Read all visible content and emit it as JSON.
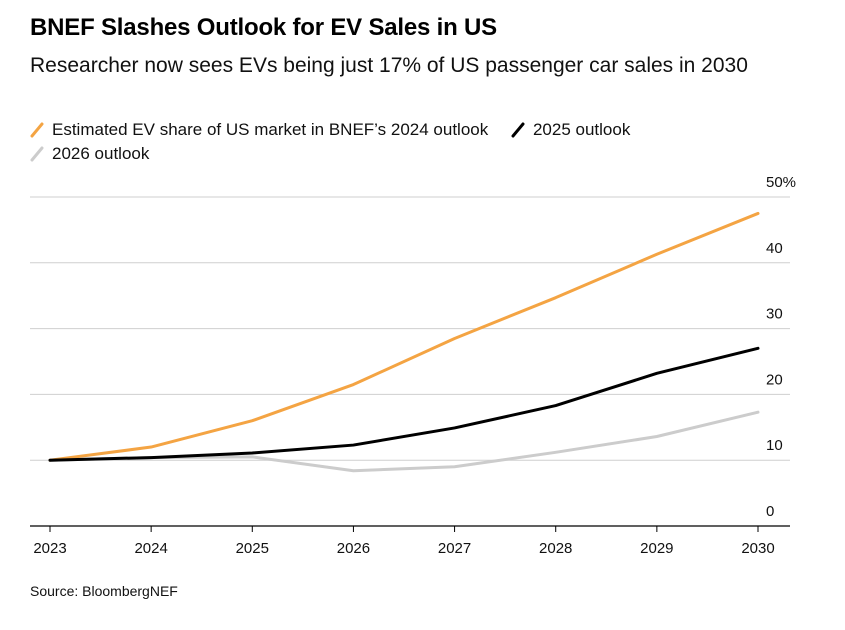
{
  "header": {
    "title": "BNEF Slashes Outlook for EV Sales in US",
    "subtitle": "Researcher now sees EVs being just 17% of US passenger car sales in 2030"
  },
  "legend": [
    {
      "label": "Estimated EV share of US market in BNEF’s 2024 outlook",
      "color": "#f4a443"
    },
    {
      "label": "2025 outlook",
      "color": "#000000"
    },
    {
      "label": "2026 outlook",
      "color": "#cccccc"
    }
  ],
  "source": "Source: BloombergNEF",
  "chart_data": {
    "type": "line",
    "x": [
      2023,
      2024,
      2025,
      2026,
      2027,
      2028,
      2029,
      2030
    ],
    "x_tick_labels": [
      "2023",
      "2024",
      "2025",
      "2026",
      "2027",
      "2028",
      "2029",
      "2030"
    ],
    "y_tick_labels": [
      "0",
      "10",
      "20",
      "30",
      "40",
      "50%"
    ],
    "y_ticks": [
      0,
      10,
      20,
      30,
      40,
      50
    ],
    "ylim": [
      0,
      50
    ],
    "grid": true,
    "legend_position": "top-left",
    "series": [
      {
        "name": "Estimated EV share of US market in BNEF’s 2024 outlook",
        "color": "#f4a443",
        "values": [
          10,
          12,
          16,
          21.5,
          28.5,
          34.7,
          41.3,
          47.5
        ]
      },
      {
        "name": "2025 outlook",
        "color": "#000000",
        "values": [
          10,
          10.4,
          11.1,
          12.3,
          14.9,
          18.3,
          23.2,
          27
        ]
      },
      {
        "name": "2026 outlook",
        "color": "#cccccc",
        "values": [
          10,
          10.4,
          10.5,
          8.4,
          9,
          11.2,
          13.6,
          17.3
        ]
      }
    ]
  }
}
